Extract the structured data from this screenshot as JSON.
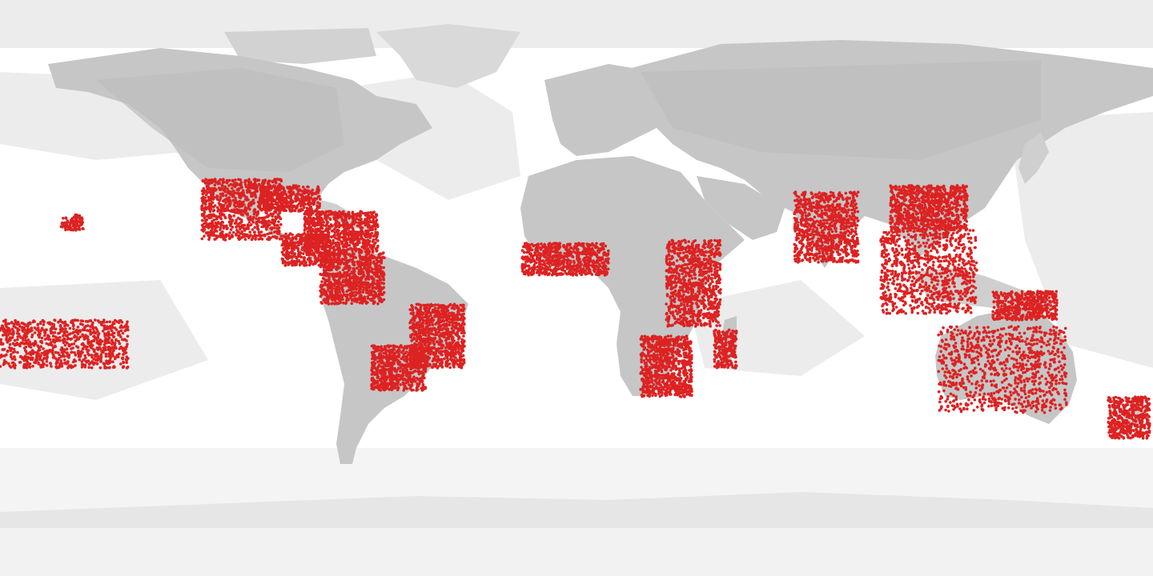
{
  "map": {
    "projection": "equirectangular",
    "extent": {
      "lon": [
        -180,
        180
      ],
      "lat": [
        -90,
        90
      ]
    },
    "colors": {
      "ocean": "#ffffff",
      "sampled_ocean": "#e9e9e9",
      "land": "#c8c8c8",
      "land_dark": "#bcbcbc",
      "ice": "#f2f2f2",
      "occurrence": "#dd2222"
    },
    "occurrence_regions": [
      {
        "name": "western-mexico",
        "lon_range": [
          -117,
          -92
        ],
        "lat_range": [
          15,
          34
        ]
      },
      {
        "name": "gulf-coast-florida",
        "lon_range": [
          -99,
          -80
        ],
        "lat_range": [
          24,
          32
        ]
      },
      {
        "name": "caribbean",
        "lon_range": [
          -85,
          -62
        ],
        "lat_range": [
          11,
          24
        ]
      },
      {
        "name": "central-america",
        "lon_range": [
          -92,
          -77
        ],
        "lat_range": [
          7,
          17
        ]
      },
      {
        "name": "northern-south-america",
        "lon_range": [
          -80,
          -60
        ],
        "lat_range": [
          -5,
          11
        ]
      },
      {
        "name": "eastern-brazil",
        "lon_range": [
          -52,
          -35
        ],
        "lat_range": [
          -25,
          -5
        ]
      },
      {
        "name": "southern-brazil-paraguay",
        "lon_range": [
          -64,
          -47
        ],
        "lat_range": [
          -32,
          -18
        ]
      },
      {
        "name": "west-africa-coast",
        "lon_range": [
          -17,
          10
        ],
        "lat_range": [
          4,
          14
        ]
      },
      {
        "name": "east-africa",
        "lon_range": [
          28,
          45
        ],
        "lat_range": [
          -12,
          15
        ]
      },
      {
        "name": "southern-africa",
        "lon_range": [
          20,
          36
        ],
        "lat_range": [
          -34,
          -15
        ]
      },
      {
        "name": "madagascar",
        "lon_range": [
          43,
          50
        ],
        "lat_range": [
          -25,
          -13
        ]
      },
      {
        "name": "india",
        "lon_range": [
          68,
          88
        ],
        "lat_range": [
          8,
          30
        ]
      },
      {
        "name": "southern-china",
        "lon_range": [
          98,
          122
        ],
        "lat_range": [
          18,
          32
        ]
      },
      {
        "name": "southeast-asia",
        "lon_range": [
          95,
          125
        ],
        "lat_range": [
          -8,
          18
        ]
      },
      {
        "name": "new-guinea",
        "lon_range": [
          130,
          150
        ],
        "lat_range": [
          -10,
          -1
        ]
      },
      {
        "name": "australia",
        "lon_range": [
          113,
          153
        ],
        "lat_range": [
          -39,
          -12
        ]
      },
      {
        "name": "new-zealand",
        "lon_range": [
          166,
          179
        ],
        "lat_range": [
          -47,
          -34
        ]
      },
      {
        "name": "hawaii",
        "lon_range": [
          -161,
          -154
        ],
        "lat_range": [
          18,
          23
        ]
      },
      {
        "name": "pacific-islands",
        "lon_range": [
          -180,
          -140
        ],
        "lat_range": [
          -25,
          -10
        ]
      }
    ]
  }
}
